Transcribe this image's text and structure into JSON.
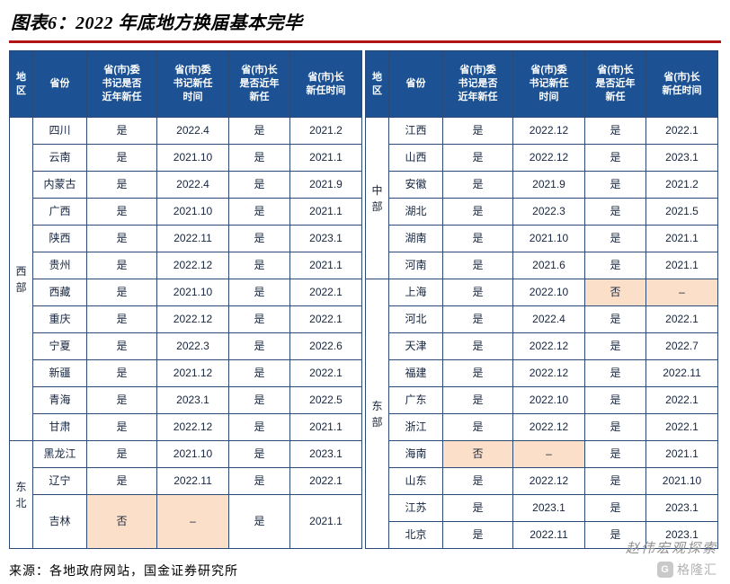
{
  "title": "图表6：2022 年底地方换届基本完毕",
  "source": "来源：各地政府网站，国金证券研究所",
  "watermark": {
    "name": "赵伟宏观探索",
    "logo_prefix": "G",
    "logo": "格隆汇"
  },
  "colors": {
    "header_bg": "#1C5294",
    "border": "#2B4A75",
    "text": "#16253F",
    "highlight": "#FBDFC9",
    "title_rule": "#B01414"
  },
  "columns": [
    "地\n区",
    "省份",
    "省(市)委\n书记是否\n近年新任",
    "省(市)委\n书记新任\n时间",
    "省(市)长\n是否近年\n新任",
    "省(市)长\n新任时间"
  ],
  "tables": {
    "left": {
      "groups": [
        {
          "region": "西部",
          "rows": [
            {
              "p": "四川",
              "c": [
                "是",
                "2022.4",
                "是",
                "2021.2"
              ]
            },
            {
              "p": "云南",
              "c": [
                "是",
                "2021.10",
                "是",
                "2021.1"
              ]
            },
            {
              "p": "内蒙古",
              "c": [
                "是",
                "2022.4",
                "是",
                "2021.9"
              ]
            },
            {
              "p": "广西",
              "c": [
                "是",
                "2021.10",
                "是",
                "2021.1"
              ]
            },
            {
              "p": "陕西",
              "c": [
                "是",
                "2022.11",
                "是",
                "2023.1"
              ]
            },
            {
              "p": "贵州",
              "c": [
                "是",
                "2022.12",
                "是",
                "2021.1"
              ]
            },
            {
              "p": "西藏",
              "c": [
                "是",
                "2021.10",
                "是",
                "2022.1"
              ]
            },
            {
              "p": "重庆",
              "c": [
                "是",
                "2022.12",
                "是",
                "2022.1"
              ]
            },
            {
              "p": "宁夏",
              "c": [
                "是",
                "2022.3",
                "是",
                "2022.6"
              ]
            },
            {
              "p": "新疆",
              "c": [
                "是",
                "2021.12",
                "是",
                "2022.1"
              ]
            },
            {
              "p": "青海",
              "c": [
                "是",
                "2023.1",
                "是",
                "2022.5"
              ]
            },
            {
              "p": "甘肃",
              "c": [
                "是",
                "2022.12",
                "是",
                "2021.1"
              ]
            }
          ]
        },
        {
          "region": "东北",
          "rows": [
            {
              "p": "黑龙江",
              "c": [
                "是",
                "2021.10",
                "是",
                "2023.1"
              ]
            },
            {
              "p": "辽宁",
              "c": [
                "是",
                "2022.11",
                "是",
                "2022.1"
              ]
            },
            {
              "p": "吉林",
              "c": [
                "否",
                "–",
                "是",
                "2021.1"
              ],
              "hl": [
                0,
                1
              ],
              "tall": true
            }
          ]
        }
      ]
    },
    "right": {
      "groups": [
        {
          "region": "中部",
          "rows": [
            {
              "p": "江西",
              "c": [
                "是",
                "2022.12",
                "是",
                "2022.1"
              ]
            },
            {
              "p": "山西",
              "c": [
                "是",
                "2022.12",
                "是",
                "2023.1"
              ]
            },
            {
              "p": "安徽",
              "c": [
                "是",
                "2021.9",
                "是",
                "2021.2"
              ]
            },
            {
              "p": "湖北",
              "c": [
                "是",
                "2022.3",
                "是",
                "2021.5"
              ]
            },
            {
              "p": "湖南",
              "c": [
                "是",
                "2021.10",
                "是",
                "2021.1"
              ]
            },
            {
              "p": "河南",
              "c": [
                "是",
                "2021.6",
                "是",
                "2021.1"
              ]
            }
          ]
        },
        {
          "region": "东部",
          "rows": [
            {
              "p": "上海",
              "c": [
                "是",
                "2022.10",
                "否",
                "–"
              ],
              "hl": [
                2,
                3
              ]
            },
            {
              "p": "河北",
              "c": [
                "是",
                "2022.4",
                "是",
                "2022.1"
              ]
            },
            {
              "p": "天津",
              "c": [
                "是",
                "2022.12",
                "是",
                "2022.7"
              ]
            },
            {
              "p": "福建",
              "c": [
                "是",
                "2022.12",
                "是",
                "2022.11"
              ]
            },
            {
              "p": "广东",
              "c": [
                "是",
                "2022.10",
                "是",
                "2022.1"
              ]
            },
            {
              "p": "浙江",
              "c": [
                "是",
                "2022.12",
                "是",
                "2022.1"
              ]
            },
            {
              "p": "海南",
              "c": [
                "否",
                "–",
                "是",
                "2021.1"
              ],
              "hl": [
                0,
                1
              ]
            },
            {
              "p": "山东",
              "c": [
                "是",
                "2022.12",
                "是",
                "2021.10"
              ]
            },
            {
              "p": "江苏",
              "c": [
                "是",
                "2023.1",
                "是",
                "2023.1"
              ]
            },
            {
              "p": "北京",
              "c": [
                "是",
                "2022.11",
                "是",
                "2023.1"
              ]
            }
          ]
        }
      ]
    }
  }
}
